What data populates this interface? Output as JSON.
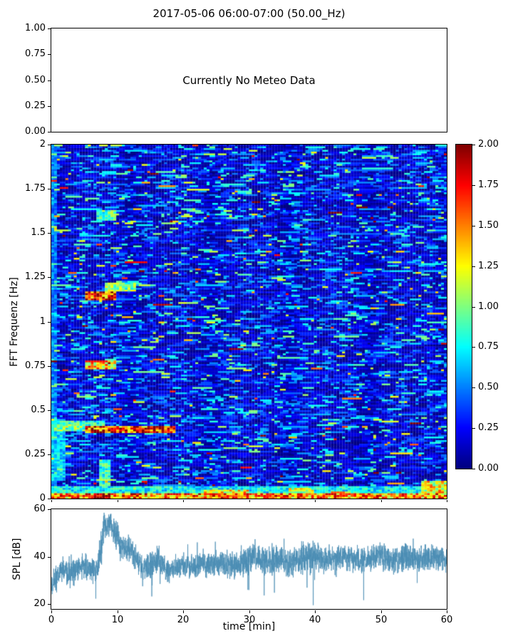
{
  "figure": {
    "title": "2017-05-06 06:00-07:00 (50.00_Hz)",
    "background": "#ffffff",
    "axis_color": "#000000"
  },
  "meteo": {
    "message": "Currently No Meteo Data",
    "ylim": [
      0,
      1
    ],
    "yticks": [
      {
        "v": 1.0,
        "label": "1.00"
      },
      {
        "v": 0.75,
        "label": "0.75"
      },
      {
        "v": 0.5,
        "label": "0.50"
      },
      {
        "v": 0.25,
        "label": "0.25"
      },
      {
        "v": 0.0,
        "label": "0.00"
      }
    ]
  },
  "spectrogram": {
    "ylabel": "FFT Frequenz [Hz]",
    "ylim": [
      0,
      2
    ],
    "yticks": [
      {
        "v": 2.0,
        "label": "2"
      },
      {
        "v": 1.75,
        "label": "1.75"
      },
      {
        "v": 1.5,
        "label": "1.5"
      },
      {
        "v": 1.25,
        "label": "1.25"
      },
      {
        "v": 1.0,
        "label": "1"
      },
      {
        "v": 0.75,
        "label": "0.75"
      },
      {
        "v": 0.5,
        "label": "0.5"
      },
      {
        "v": 0.25,
        "label": "0.25"
      },
      {
        "v": 0.0,
        "label": "0"
      }
    ]
  },
  "colorbar": {
    "colormap": "jet",
    "lim": [
      0,
      2
    ],
    "ticks": [
      {
        "v": 2.0,
        "label": "2.00"
      },
      {
        "v": 1.75,
        "label": "1.75"
      },
      {
        "v": 1.5,
        "label": "1.50"
      },
      {
        "v": 1.25,
        "label": "1.25"
      },
      {
        "v": 1.0,
        "label": "1.00"
      },
      {
        "v": 0.75,
        "label": "0.75"
      },
      {
        "v": 0.5,
        "label": "0.50"
      },
      {
        "v": 0.25,
        "label": "0.25"
      },
      {
        "v": 0.0,
        "label": "0.00"
      }
    ]
  },
  "spl": {
    "ylabel": "SPL [dB]",
    "xlabel": "time [min]",
    "ylim": [
      18,
      60
    ],
    "xlim": [
      0,
      60
    ],
    "line_color": "#4a8db4",
    "yticks": [
      {
        "v": 60,
        "label": "60"
      },
      {
        "v": 40,
        "label": "40"
      },
      {
        "v": 20,
        "label": "20"
      }
    ],
    "xticks": [
      {
        "v": 0,
        "label": "0"
      },
      {
        "v": 10,
        "label": "10"
      },
      {
        "v": 20,
        "label": "20"
      },
      {
        "v": 30,
        "label": "30"
      },
      {
        "v": 40,
        "label": "40"
      },
      {
        "v": 50,
        "label": "50"
      },
      {
        "v": 60,
        "label": "60"
      }
    ]
  },
  "chart_data": [
    {
      "type": "line",
      "panel": "meteo",
      "title": "2017-05-06 06:00-07:00 (50.00_Hz)",
      "annotation": "Currently No Meteo Data",
      "ylim": [
        0,
        1
      ],
      "series": []
    },
    {
      "type": "heatmap",
      "panel": "spectrogram",
      "ylabel": "FFT Frequenz [Hz]",
      "xlabel": "time [min]",
      "xlim": [
        0,
        60
      ],
      "ylim": [
        0,
        2
      ],
      "vmin": 0,
      "vmax": 2,
      "colormap": "jet",
      "description": "broadband noise mostly 0.1-0.5 (blue) with cyan/green streaks; discrete hot features listed below (t=minutes, f=Hz, v=amplitude 0-2)",
      "noise": {
        "seed": 1234,
        "time_bins": 140,
        "freq_bins": 200,
        "mean": 0.3,
        "persistence": 0.5
      },
      "features": [
        {
          "t": [
            0,
            0.7
          ],
          "f": [
            0,
            2
          ],
          "v": 0.55
        },
        {
          "t": [
            0,
            2
          ],
          "f": [
            0.1,
            0.45
          ],
          "v": 0.75
        },
        {
          "t": [
            0.5,
            8
          ],
          "f": [
            0.405,
            0.44
          ],
          "v": 0.95
        },
        {
          "t": [
            0,
            5
          ],
          "f": [
            0.385,
            0.42
          ],
          "v": 1.1
        },
        {
          "t": [
            5,
            19
          ],
          "f": [
            0.375,
            0.405
          ],
          "v": 1.9
        },
        {
          "t": [
            5,
            10
          ],
          "f": [
            1.12,
            1.17
          ],
          "v": 1.9
        },
        {
          "t": [
            8,
            13
          ],
          "f": [
            1.17,
            1.215
          ],
          "v": 1.15
        },
        {
          "t": [
            5,
            10
          ],
          "f": [
            0.73,
            0.775
          ],
          "v": 1.5
        },
        {
          "t": [
            7,
            10
          ],
          "f": [
            1.57,
            1.63
          ],
          "v": 1.0
        },
        {
          "t": [
            7.5,
            9
          ],
          "f": [
            0.07,
            0.22
          ],
          "v": 0.95
        },
        {
          "t": [
            0,
            60
          ],
          "f": [
            0,
            0.025
          ],
          "v": 1.7
        },
        {
          "t": [
            6.5,
            9
          ],
          "f": [
            0,
            0.03
          ],
          "v": 2.0
        },
        {
          "t": [
            0,
            60
          ],
          "f": [
            0.025,
            0.07
          ],
          "v": 0.85
        },
        {
          "t": [
            23,
            30
          ],
          "f": [
            0.01,
            0.05
          ],
          "v": 1.4
        },
        {
          "t": [
            36,
            40
          ],
          "f": [
            0.02,
            0.06
          ],
          "v": 1.25
        },
        {
          "t": [
            56,
            60
          ],
          "f": [
            0.03,
            0.1
          ],
          "v": 1.45
        }
      ]
    },
    {
      "type": "line",
      "panel": "spl",
      "ylabel": "SPL [dB]",
      "xlabel": "time [min]",
      "xlim": [
        0,
        60
      ],
      "ylim": [
        18,
        60
      ],
      "seed": 99,
      "samples": 3200,
      "envelope": {
        "x": [
          0,
          1,
          2,
          3,
          4,
          5,
          6,
          7,
          7.5,
          8,
          9,
          10,
          10.5,
          11,
          12,
          13,
          14,
          15,
          16,
          17,
          18,
          20,
          22,
          24,
          26,
          28,
          30,
          31,
          32,
          34,
          36,
          38,
          40,
          42,
          44,
          46,
          48,
          50,
          52,
          54,
          56,
          58,
          60
        ],
        "mean": [
          27,
          32,
          35,
          33,
          35,
          36,
          34,
          35,
          42,
          53,
          55,
          49,
          44,
          43,
          44,
          38,
          35,
          36,
          39,
          36,
          34,
          36,
          36,
          37,
          37,
          36,
          38,
          40,
          38,
          39,
          37,
          39,
          40,
          39,
          40,
          39,
          39,
          40,
          38,
          40,
          39,
          40,
          39
        ],
        "spread": [
          5,
          4,
          4,
          5,
          4,
          4,
          4,
          4,
          6,
          5,
          4,
          5,
          4,
          4,
          4,
          4,
          4,
          4,
          4,
          4,
          4,
          4,
          4,
          4,
          4,
          4,
          5,
          5,
          4,
          5,
          4,
          5,
          5,
          4,
          4,
          4,
          4,
          4,
          4,
          4,
          4,
          4,
          4
        ]
      }
    }
  ]
}
